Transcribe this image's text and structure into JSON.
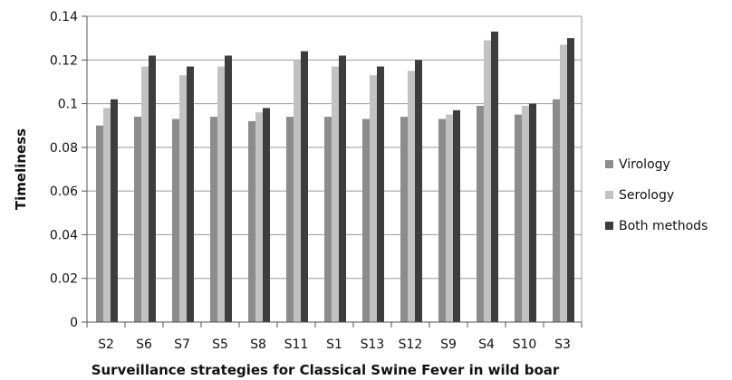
{
  "chart_data": {
    "type": "bar",
    "title": "",
    "xlabel": "Surveillance strategies for Classical Swine Fever in wild boar",
    "ylabel": "Timeliness",
    "ylim": [
      0,
      0.14
    ],
    "yticks": [
      0,
      0.02,
      0.04,
      0.06,
      0.08,
      0.1,
      0.12,
      0.14
    ],
    "ytick_labels": [
      "0",
      "0.02",
      "0.04",
      "0.06",
      "0.08",
      "0.1",
      "0.12",
      "0.14"
    ],
    "grid": true,
    "legend_position": "right",
    "categories": [
      "S2",
      "S6",
      "S7",
      "S5",
      "S8",
      "S11",
      "S1",
      "S13",
      "S12",
      "S9",
      "S4",
      "S10",
      "S3"
    ],
    "series": [
      {
        "name": "Virology",
        "color": "#8c8c8c",
        "values": [
          0.09,
          0.094,
          0.093,
          0.094,
          0.092,
          0.094,
          0.094,
          0.093,
          0.094,
          0.093,
          0.099,
          0.095,
          0.102
        ]
      },
      {
        "name": "Serology",
        "color": "#c2c2c2",
        "values": [
          0.098,
          0.117,
          0.113,
          0.117,
          0.096,
          0.12,
          0.117,
          0.113,
          0.115,
          0.095,
          0.129,
          0.099,
          0.127
        ]
      },
      {
        "name": "Both methods",
        "color": "#3d3d3d",
        "values": [
          0.102,
          0.122,
          0.117,
          0.122,
          0.098,
          0.124,
          0.122,
          0.117,
          0.12,
          0.097,
          0.133,
          0.1,
          0.13
        ]
      }
    ]
  }
}
